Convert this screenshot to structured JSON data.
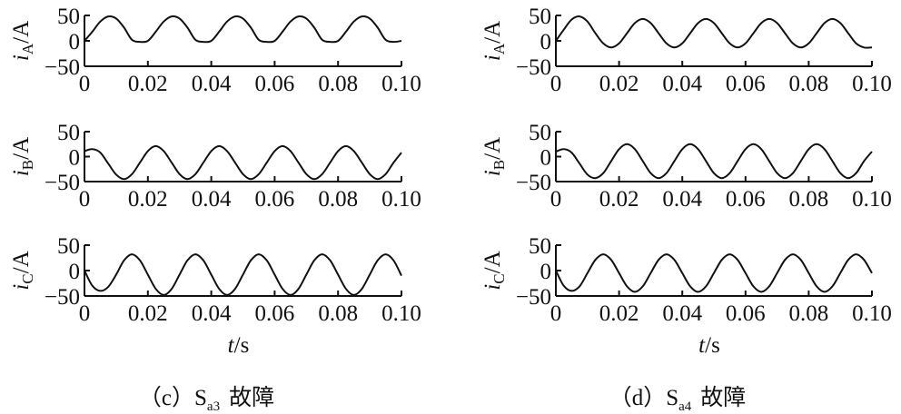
{
  "chart_data": [
    {
      "type": "line",
      "panel": "c",
      "caption": {
        "prefix": "（c）",
        "symbol": "S",
        "subscript": "a3",
        "suffix": "故障"
      },
      "xlabel": {
        "var": "t",
        "unit": "/s"
      },
      "xlim": [
        0,
        0.1
      ],
      "xticks": [
        "0",
        "0.02",
        "0.04",
        "0.06",
        "0.08",
        "0.10"
      ],
      "x_step": 0.0025,
      "subplots": [
        {
          "ylabel": {
            "var": "i",
            "sub": "A",
            "unit": "/A"
          },
          "ylim": [
            -50,
            50
          ],
          "yticks": [
            "50",
            "0",
            "−50"
          ],
          "values": [
            0,
            18,
            38,
            48,
            44,
            26,
            2,
            -2,
            0,
            18,
            38,
            48,
            44,
            26,
            2,
            -2,
            0,
            18,
            38,
            48,
            44,
            26,
            2,
            -2,
            0,
            18,
            38,
            48,
            44,
            26,
            2,
            -2,
            0,
            18,
            38,
            48,
            44,
            26,
            2,
            -2,
            0
          ]
        },
        {
          "ylabel": {
            "var": "i",
            "sub": "B",
            "unit": "/A"
          },
          "ylim": [
            -50,
            50
          ],
          "yticks": [
            "50",
            "0",
            "−50"
          ],
          "values": [
            11,
            15,
            8,
            -14,
            -36,
            -45,
            -35,
            -12,
            11,
            21,
            11,
            -12,
            -35,
            -45,
            -35,
            -12,
            11,
            21,
            11,
            -12,
            -35,
            -45,
            -35,
            -12,
            11,
            21,
            11,
            -12,
            -35,
            -45,
            -35,
            -12,
            11,
            21,
            11,
            -12,
            -35,
            -45,
            -35,
            -12,
            8
          ]
        },
        {
          "ylabel": {
            "var": "i",
            "sub": "C",
            "unit": "/A"
          },
          "ylim": [
            -50,
            50
          ],
          "yticks": [
            "50",
            "0",
            "−50"
          ],
          "values": [
            0,
            -30,
            -40,
            -32,
            -8,
            20,
            32,
            20,
            -8,
            -36,
            -48,
            -36,
            -8,
            20,
            32,
            20,
            -8,
            -36,
            -48,
            -36,
            -8,
            20,
            32,
            20,
            -8,
            -36,
            -48,
            -36,
            -8,
            20,
            32,
            20,
            -8,
            -36,
            -48,
            -36,
            -8,
            20,
            32,
            20,
            -10
          ]
        }
      ]
    },
    {
      "type": "line",
      "panel": "d",
      "caption": {
        "prefix": "（d）",
        "symbol": "S",
        "subscript": "a4",
        "suffix": "故障"
      },
      "xlabel": {
        "var": "t",
        "unit": "/s"
      },
      "xlim": [
        0,
        0.1
      ],
      "xticks": [
        "0",
        "0.02",
        "0.04",
        "0.06",
        "0.08",
        "0.10"
      ],
      "x_step": 0.0025,
      "subplots": [
        {
          "ylabel": {
            "var": "i",
            "sub": "A",
            "unit": "/A"
          },
          "ylim": [
            -50,
            50
          ],
          "yticks": [
            "50",
            "0",
            "−50"
          ],
          "values": [
            0,
            22,
            42,
            48,
            38,
            15,
            -5,
            -13,
            -5,
            15,
            35,
            43,
            35,
            15,
            -5,
            -13,
            -5,
            15,
            35,
            43,
            35,
            15,
            -5,
            -13,
            -5,
            15,
            35,
            43,
            35,
            15,
            -5,
            -13,
            -5,
            15,
            35,
            43,
            35,
            15,
            -5,
            -13,
            -13
          ]
        },
        {
          "ylabel": {
            "var": "i",
            "sub": "B",
            "unit": "/A"
          },
          "ylim": [
            -50,
            50
          ],
          "yticks": [
            "50",
            "0",
            "−50"
          ],
          "values": [
            10,
            15,
            8,
            -14,
            -36,
            -43,
            -33,
            -9,
            15,
            25,
            15,
            -9,
            -33,
            -43,
            -33,
            -9,
            15,
            25,
            15,
            -9,
            -33,
            -43,
            -33,
            -9,
            15,
            25,
            15,
            -9,
            -33,
            -43,
            -33,
            -9,
            15,
            25,
            15,
            -9,
            -33,
            -43,
            -33,
            -9,
            10
          ]
        },
        {
          "ylabel": {
            "var": "i",
            "sub": "C",
            "unit": "/A"
          },
          "ylim": [
            -50,
            50
          ],
          "yticks": [
            "50",
            "0",
            "−50"
          ],
          "values": [
            0,
            -30,
            -40,
            -31,
            -5,
            21,
            32,
            21,
            -5,
            -31,
            -42,
            -31,
            -5,
            21,
            32,
            21,
            -5,
            -31,
            -42,
            -31,
            -5,
            21,
            32,
            21,
            -5,
            -31,
            -42,
            -31,
            -5,
            21,
            32,
            21,
            -5,
            -31,
            -42,
            -31,
            -5,
            21,
            32,
            21,
            -5
          ]
        }
      ]
    }
  ]
}
